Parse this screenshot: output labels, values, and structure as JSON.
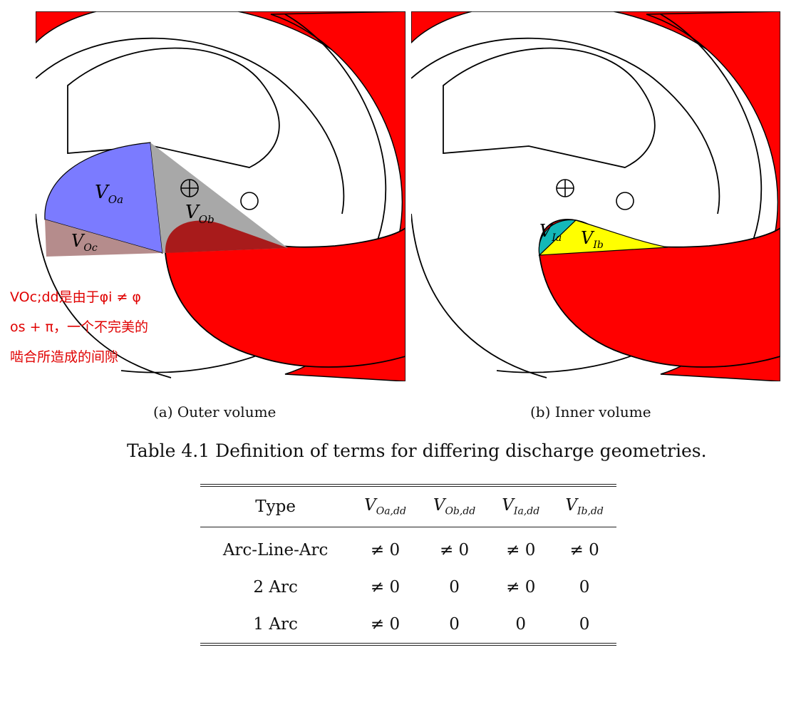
{
  "figure": {
    "panel_a": {
      "labels": {
        "voa": "V",
        "voa_sub": "Oa",
        "vob": "V",
        "vob_sub": "Ob",
        "voc": "V",
        "voc_sub": "Oc"
      },
      "caption": "(a) Outer volume"
    },
    "panel_b": {
      "labels": {
        "via": "V",
        "via_sub": "Ia",
        "vib": "V",
        "vib_sub": "Ib"
      },
      "caption": "(b) Inner volume"
    },
    "colors": {
      "scroll": "#ff0000",
      "voa": "#7b7bff",
      "vob": "#a8a8a8",
      "voc": "#b58c8c",
      "via": "#14b8b8",
      "vib": "#ffff00",
      "overlap": "#a81b1b"
    }
  },
  "annotation": {
    "line1": "VOc;dd是由于φi ≠ φ",
    "line2": "os + π，一个不完美的",
    "line3": "啮合所造成的间隙"
  },
  "table": {
    "title": "Table 4.1 Definition of terms for differing discharge geometries.",
    "headers": [
      {
        "main": "Type",
        "sub": ""
      },
      {
        "main": "V",
        "sub": "Oa,dd"
      },
      {
        "main": "V",
        "sub": "Ob,dd"
      },
      {
        "main": "V",
        "sub": "Ia,dd"
      },
      {
        "main": "V",
        "sub": "Ib,dd"
      }
    ],
    "rows": [
      [
        "Arc-Line-Arc",
        "≠ 0",
        "≠ 0",
        "≠ 0",
        "≠ 0"
      ],
      [
        "2 Arc",
        "≠ 0",
        "0",
        "≠ 0",
        "0"
      ],
      [
        "1 Arc",
        "≠ 0",
        "0",
        "0",
        "0"
      ]
    ]
  }
}
